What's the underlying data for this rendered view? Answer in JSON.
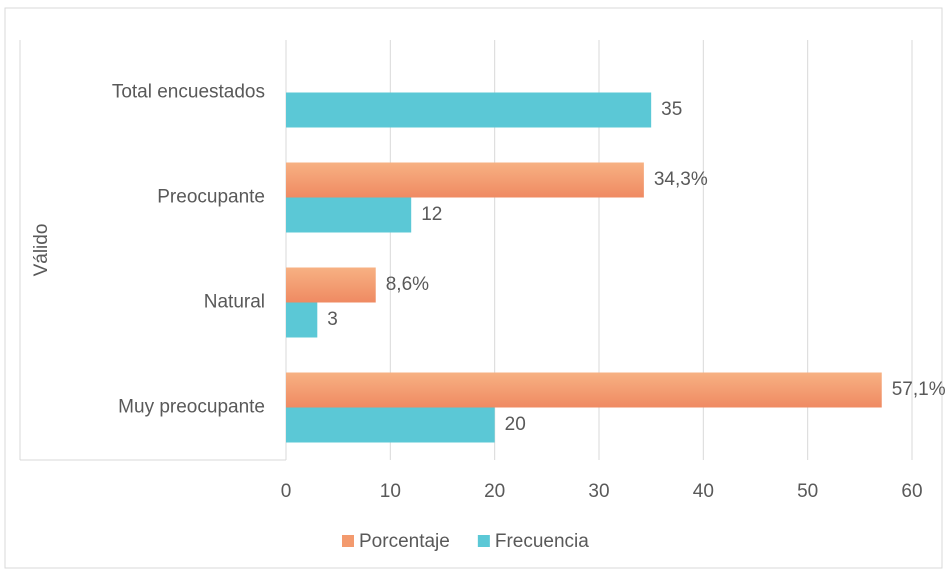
{
  "chart_data": {
    "type": "bar",
    "orientation": "horizontal",
    "y_label": "Válido",
    "categories": [
      "Total encuestados",
      "Preocupante",
      "Natural",
      "Muy preocupante"
    ],
    "series": [
      {
        "name": "Porcentaje",
        "color": "#f39a6e",
        "values": [
          null,
          34.3,
          8.6,
          57.1
        ],
        "value_labels": [
          null,
          "34,3%",
          "8,6%",
          "57,1%"
        ]
      },
      {
        "name": "Frecuencia",
        "color": "#5bc8d6",
        "values": [
          35,
          12,
          3,
          20
        ]
      }
    ],
    "xlim": [
      0,
      60
    ],
    "xticks": [
      0,
      10,
      20,
      30,
      40,
      50,
      60
    ],
    "grid": true,
    "legend": "bottom"
  }
}
